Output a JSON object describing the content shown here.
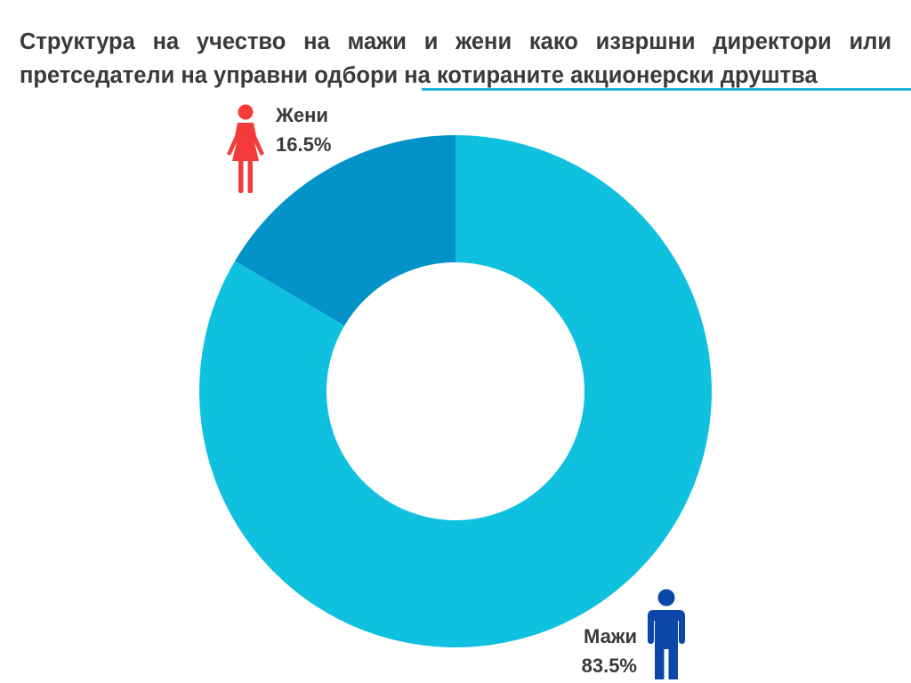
{
  "title": {
    "line1": "Структура на учество на мажи и жени како извршни директори или",
    "line2": "претседатели на управни одбори на котираните акционерски друштва"
  },
  "colors": {
    "men_slice": "#0FC0DF",
    "women_slice": "#0493C8",
    "women_icon": "#F53A3A",
    "men_icon": "#0B47A8",
    "title_text": "#3a3a3a",
    "accent_line": "#1FB6D9"
  },
  "chart_data": {
    "type": "pie",
    "donut": true,
    "slices": [
      {
        "label": "Мажи",
        "value": 83.5,
        "display": "83.5%",
        "color": "#0FC0DF",
        "icon": "man-icon"
      },
      {
        "label": "Жени",
        "value": 16.5,
        "display": "16.5%",
        "color": "#0493C8",
        "icon": "woman-icon"
      }
    ],
    "legend": "none",
    "start_angle_deg": 0,
    "direction": "clockwise"
  }
}
